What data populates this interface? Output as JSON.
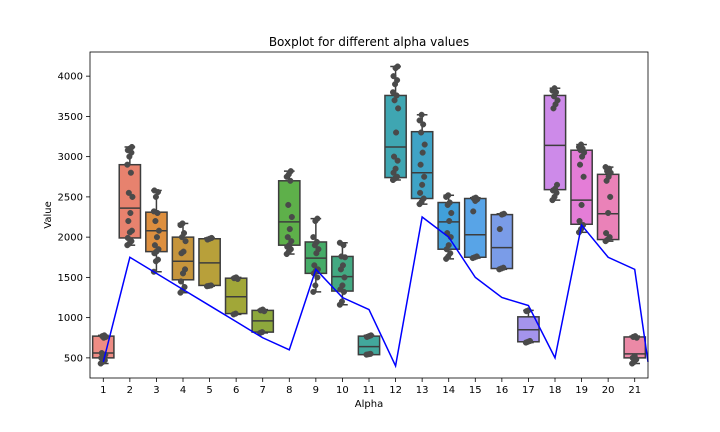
{
  "chart_data": {
    "type": "boxplot",
    "title": "Boxplot for different alpha values",
    "xlabel": "Alpha",
    "ylabel": "Value",
    "ylim": [
      250,
      4300
    ],
    "yticks": [
      500,
      1000,
      1500,
      2000,
      2500,
      3000,
      3500,
      4000
    ],
    "categories": [
      "1",
      "2",
      "3",
      "4",
      "5",
      "6",
      "7",
      "8",
      "9",
      "10",
      "11",
      "12",
      "13",
      "14",
      "15",
      "16",
      "17",
      "18",
      "19",
      "20",
      "21"
    ],
    "boxes": [
      {
        "min": 430,
        "q1": 500,
        "median": 560,
        "q3": 770,
        "max": 780
      },
      {
        "min": 1900,
        "q1": 1990,
        "median": 2360,
        "q3": 2900,
        "max": 3120
      },
      {
        "min": 1570,
        "q1": 1820,
        "median": 2080,
        "q3": 2310,
        "max": 2580
      },
      {
        "min": 1310,
        "q1": 1470,
        "median": 1700,
        "q3": 2000,
        "max": 2170
      },
      {
        "min": 1390,
        "q1": 1400,
        "median": 1680,
        "q3": 1980,
        "max": 1990
      },
      {
        "min": 1040,
        "q1": 1050,
        "median": 1260,
        "q3": 1490,
        "max": 1500
      },
      {
        "min": 810,
        "q1": 820,
        "median": 960,
        "q3": 1090,
        "max": 1100
      },
      {
        "min": 1790,
        "q1": 1900,
        "median": 2190,
        "q3": 2700,
        "max": 2820
      },
      {
        "min": 1320,
        "q1": 1550,
        "median": 1740,
        "q3": 1940,
        "max": 2230
      },
      {
        "min": 1160,
        "q1": 1330,
        "median": 1510,
        "q3": 1760,
        "max": 1930
      },
      {
        "min": 540,
        "q1": 540,
        "median": 640,
        "q3": 770,
        "max": 780
      },
      {
        "min": 2710,
        "q1": 2740,
        "median": 3120,
        "q3": 3760,
        "max": 4120
      },
      {
        "min": 2410,
        "q1": 2480,
        "median": 2800,
        "q3": 3310,
        "max": 3520
      },
      {
        "min": 1730,
        "q1": 1850,
        "median": 2190,
        "q3": 2430,
        "max": 2520
      },
      {
        "min": 1740,
        "q1": 1750,
        "median": 2030,
        "q3": 2480,
        "max": 2490
      },
      {
        "min": 1600,
        "q1": 1610,
        "median": 1870,
        "q3": 2280,
        "max": 2290
      },
      {
        "min": 690,
        "q1": 700,
        "median": 850,
        "q3": 1010,
        "max": 1090
      },
      {
        "min": 2460,
        "q1": 2590,
        "median": 3140,
        "q3": 3760,
        "max": 3850
      },
      {
        "min": 2060,
        "q1": 2160,
        "median": 2460,
        "q3": 3080,
        "max": 3150
      },
      {
        "min": 1950,
        "q1": 1970,
        "median": 2290,
        "q3": 2780,
        "max": 2870
      },
      {
        "min": 430,
        "q1": 500,
        "median": 550,
        "q3": 760,
        "max": 770
      }
    ],
    "points": [
      [
        430,
        450,
        470,
        500,
        520,
        540,
        560,
        750,
        760,
        770,
        780
      ],
      [
        1900,
        1920,
        1950,
        1990,
        2060,
        2080,
        2200,
        2300,
        2500,
        2550,
        2800,
        2900,
        3000,
        3050,
        3080,
        3100,
        3120
      ],
      [
        1570,
        1700,
        1720,
        1800,
        1820,
        1850,
        1900,
        2000,
        2080,
        2200,
        2300,
        2320,
        2500,
        2560,
        2580
      ],
      [
        1310,
        1340,
        1380,
        1450,
        1550,
        1600,
        1800,
        1820,
        1950,
        2000,
        2050,
        2150,
        2170
      ],
      [
        1390,
        1395,
        1400,
        1970,
        1980,
        1990
      ],
      [
        1040,
        1050,
        1480,
        1490,
        1500
      ],
      [
        810,
        820,
        1080,
        1090,
        1100
      ],
      [
        1790,
        1820,
        1850,
        1880,
        1900,
        1950,
        2000,
        2100,
        2250,
        2400,
        2700,
        2750,
        2780,
        2820
      ],
      [
        1320,
        1400,
        1500,
        1550,
        1580,
        1600,
        1650,
        1800,
        1850,
        1900,
        1940,
        2000,
        2200,
        2230
      ],
      [
        1160,
        1200,
        1320,
        1350,
        1400,
        1500,
        1600,
        1650,
        1750,
        1760,
        1900,
        1930
      ],
      [
        540,
        545,
        550,
        760,
        770,
        780
      ],
      [
        2710,
        2730,
        2750,
        2800,
        2850,
        2950,
        3000,
        3300,
        3600,
        3700,
        3760,
        3800,
        3900,
        3950,
        4000,
        4100,
        4120
      ],
      [
        2410,
        2440,
        2480,
        2550,
        2650,
        2750,
        2900,
        3050,
        3150,
        3300,
        3400,
        3450,
        3520
      ],
      [
        1730,
        1760,
        1800,
        1850,
        1900,
        2000,
        2050,
        2200,
        2300,
        2400,
        2430,
        2500,
        2520
      ],
      [
        1740,
        1750,
        1760,
        2320,
        2450,
        2470,
        2480,
        2490
      ],
      [
        1600,
        1610,
        1620,
        2100,
        2280,
        2290
      ],
      [
        690,
        700,
        710,
        1080,
        1090
      ],
      [
        2460,
        2500,
        2550,
        2580,
        2600,
        2650,
        3600,
        3650,
        3700,
        3750,
        3800,
        3820,
        3850
      ],
      [
        2060,
        2100,
        2150,
        2200,
        2400,
        2750,
        2900,
        3000,
        3050,
        3080,
        3100,
        3120,
        3150
      ],
      [
        1950,
        1970,
        2000,
        2050,
        2300,
        2500,
        2700,
        2750,
        2800,
        2820,
        2850,
        2870
      ],
      [
        430,
        450,
        480,
        500,
        520,
        750,
        760,
        770
      ]
    ],
    "line": {
      "color": "#0000ff",
      "values": [
        450,
        1750,
        1550,
        1350,
        1150,
        950,
        750,
        600,
        1600,
        1250,
        1100,
        400,
        2250,
        2000,
        1500,
        1250,
        1150,
        500,
        2150,
        1750,
        1600,
        450
      ]
    },
    "box_colors": [
      "#ee8c84",
      "#e7826e",
      "#dd8f3f",
      "#c6953c",
      "#b8a03a",
      "#a1a738",
      "#8da83c",
      "#5eb04a",
      "#45ab67",
      "#43a982",
      "#42a89c",
      "#3fa6b2",
      "#3fa3c6",
      "#41a0da",
      "#58a4e7",
      "#7a9ce8",
      "#a494ec",
      "#cd8ae9",
      "#e47dd7",
      "#ea82b8",
      "#eb89a6"
    ],
    "grid": false
  }
}
